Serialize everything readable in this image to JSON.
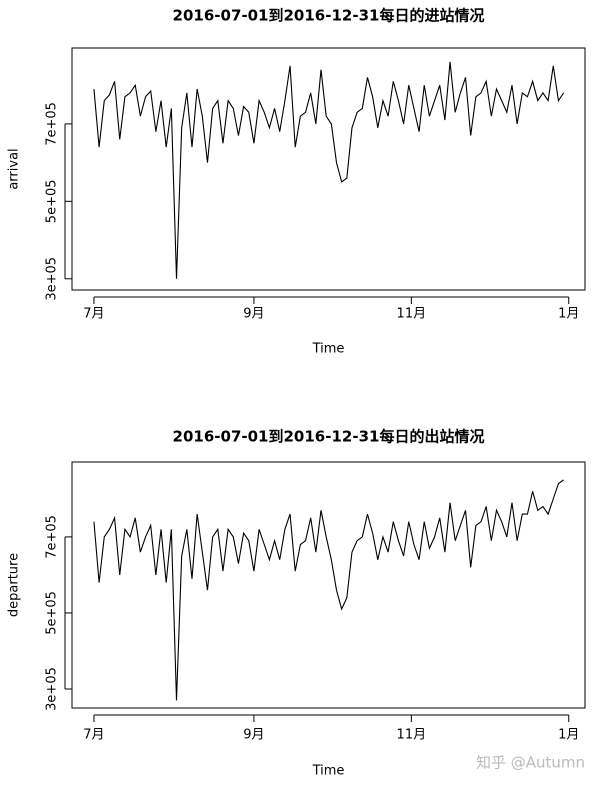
{
  "chart_data": [
    {
      "type": "line",
      "title": "2016-07-01到2016-12-31每日的进站情况",
      "xlabel": "Time",
      "ylabel": "arrival",
      "x": [
        0,
        2,
        4,
        6,
        8,
        10,
        12,
        14,
        16,
        18,
        20,
        22,
        24,
        26,
        28,
        30,
        32,
        34,
        36,
        38,
        40,
        42,
        44,
        46,
        48,
        50,
        52,
        54,
        56,
        58,
        60,
        62,
        64,
        66,
        68,
        70,
        72,
        74,
        76,
        78,
        80,
        82,
        84,
        86,
        88,
        90,
        92,
        94,
        96,
        98,
        100,
        102,
        104,
        106,
        108,
        110,
        112,
        114,
        116,
        118,
        120,
        122,
        124,
        126,
        128,
        130,
        132,
        134,
        136,
        138,
        140,
        142,
        144,
        146,
        148,
        150,
        152,
        154,
        156,
        158,
        160,
        162,
        164,
        166,
        168,
        170,
        172,
        174,
        176,
        178,
        180,
        182
      ],
      "values": [
        790000,
        640000,
        760000,
        775000,
        810000,
        660000,
        770000,
        780000,
        800000,
        720000,
        770000,
        785000,
        680000,
        760000,
        640000,
        740000,
        300000,
        690000,
        780000,
        640000,
        790000,
        720000,
        600000,
        740000,
        760000,
        650000,
        760000,
        740000,
        670000,
        745000,
        730000,
        650000,
        760000,
        730000,
        690000,
        740000,
        680000,
        760000,
        850000,
        640000,
        720000,
        730000,
        780000,
        700000,
        840000,
        720000,
        700000,
        600000,
        550000,
        560000,
        690000,
        730000,
        740000,
        820000,
        770000,
        690000,
        760000,
        720000,
        810000,
        760000,
        700000,
        800000,
        740000,
        680000,
        800000,
        720000,
        760000,
        800000,
        710000,
        860000,
        730000,
        780000,
        820000,
        670000,
        770000,
        780000,
        810000,
        720000,
        790000,
        760000,
        730000,
        800000,
        700000,
        780000,
        770000,
        810000,
        760000,
        780000,
        760000,
        850000,
        760000,
        780000
      ],
      "color": "#000000",
      "xlim": [
        -8.5,
        190.3
      ],
      "ylim": [
        271000,
        896000
      ],
      "xticks": [
        {
          "value": 0,
          "label": "7月"
        },
        {
          "value": 62,
          "label": "9月"
        },
        {
          "value": 123,
          "label": "11月"
        },
        {
          "value": 184,
          "label": "1月"
        }
      ],
      "yticks": [
        {
          "value": 300000,
          "label": "3e+05"
        },
        {
          "value": 500000,
          "label": "5e+05"
        },
        {
          "value": 700000,
          "label": "7e+05"
        }
      ],
      "grid": false
    },
    {
      "type": "line",
      "title": "2016-07-01到2016-12-31每日的出站情况",
      "xlabel": "Time",
      "ylabel": "departure",
      "x": [
        0,
        2,
        4,
        6,
        8,
        10,
        12,
        14,
        16,
        18,
        20,
        22,
        24,
        26,
        28,
        30,
        32,
        34,
        36,
        38,
        40,
        42,
        44,
        46,
        48,
        50,
        52,
        54,
        56,
        58,
        60,
        62,
        64,
        66,
        68,
        70,
        72,
        74,
        76,
        78,
        80,
        82,
        84,
        86,
        88,
        90,
        92,
        94,
        96,
        98,
        100,
        102,
        104,
        106,
        108,
        110,
        112,
        114,
        116,
        118,
        120,
        122,
        124,
        126,
        128,
        130,
        132,
        134,
        136,
        138,
        140,
        142,
        144,
        146,
        148,
        150,
        152,
        154,
        156,
        158,
        160,
        162,
        164,
        166,
        168,
        170,
        172,
        174,
        176,
        178,
        180,
        182
      ],
      "values": [
        740000,
        580000,
        700000,
        720000,
        750000,
        600000,
        720000,
        700000,
        750000,
        660000,
        700000,
        730000,
        600000,
        720000,
        580000,
        720000,
        270000,
        650000,
        720000,
        590000,
        760000,
        660000,
        560000,
        700000,
        720000,
        610000,
        720000,
        700000,
        630000,
        710000,
        690000,
        610000,
        720000,
        680000,
        640000,
        690000,
        640000,
        720000,
        760000,
        610000,
        680000,
        690000,
        750000,
        660000,
        770000,
        700000,
        640000,
        560000,
        510000,
        540000,
        660000,
        690000,
        700000,
        760000,
        710000,
        640000,
        700000,
        660000,
        740000,
        690000,
        650000,
        740000,
        680000,
        640000,
        740000,
        670000,
        700000,
        750000,
        660000,
        790000,
        690000,
        730000,
        770000,
        620000,
        730000,
        740000,
        780000,
        690000,
        770000,
        740000,
        700000,
        790000,
        690000,
        760000,
        760000,
        820000,
        770000,
        780000,
        760000,
        800000,
        840000,
        850000
      ],
      "color": "#000000",
      "xlim": [
        -8.5,
        190.3
      ],
      "ylim": [
        250000,
        897000
      ],
      "xticks": [
        {
          "value": 0,
          "label": "7月"
        },
        {
          "value": 62,
          "label": "9月"
        },
        {
          "value": 123,
          "label": "11月"
        },
        {
          "value": 184,
          "label": "1月"
        }
      ],
      "yticks": [
        {
          "value": 300000,
          "label": "3e+05"
        },
        {
          "value": 500000,
          "label": "5e+05"
        },
        {
          "value": 700000,
          "label": "7e+05"
        }
      ],
      "grid": false
    }
  ],
  "watermark": "知乎 @Autumn"
}
